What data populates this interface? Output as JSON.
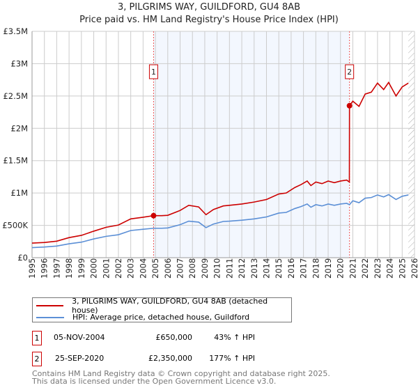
{
  "chart_data": {
    "type": "line",
    "title": "3, PILGRIMS WAY, GUILDFORD, GU4 8AB",
    "subtitle": "Price paid vs. HM Land Registry's House Price Index (HPI)",
    "xlim": [
      1995,
      2026
    ],
    "ylim": [
      0,
      3500000
    ],
    "yticks": [
      {
        "v": 0,
        "label": "£0"
      },
      {
        "v": 500000,
        "label": "£500K"
      },
      {
        "v": 1000000,
        "label": "£1M"
      },
      {
        "v": 1500000,
        "label": "£1.5M"
      },
      {
        "v": 2000000,
        "label": "£2M"
      },
      {
        "v": 2500000,
        "label": "£2.5M"
      },
      {
        "v": 3000000,
        "label": "£3M"
      },
      {
        "v": 3500000,
        "label": "£3.5M"
      }
    ],
    "xticks": [
      "1995",
      "1996",
      "1997",
      "1998",
      "1999",
      "2000",
      "2001",
      "2002",
      "2003",
      "2004",
      "2005",
      "2006",
      "2007",
      "2008",
      "2009",
      "2010",
      "2011",
      "2012",
      "2013",
      "2014",
      "2015",
      "2016",
      "2017",
      "2018",
      "2019",
      "2020",
      "2021",
      "2022",
      "2023",
      "2024",
      "2025",
      "2026"
    ],
    "shaded_range": [
      2004.85,
      2020.73
    ],
    "hatched_from": 2025.5,
    "series": [
      {
        "name": "3, PILGRIMS WAY, GUILDFORD, GU4 8AB (detached house)",
        "color": "#cc0000",
        "x": [
          1995,
          1996,
          1997,
          1998,
          1999,
          2000,
          2001,
          2002,
          2003,
          2004,
          2004.85,
          2005.5,
          2006,
          2007,
          2007.7,
          2008.5,
          2009.1,
          2009.7,
          2010.5,
          2011,
          2012,
          2013,
          2014,
          2015,
          2015.6,
          2016.3,
          2016.8,
          2017.3,
          2017.6,
          2018,
          2018.5,
          2019,
          2019.5,
          2020,
          2020.5,
          2020.72,
          2020.73,
          2021,
          2021.5,
          2022,
          2022.5,
          2023,
          2023.5,
          2023.9,
          2024.5,
          2025,
          2025.5
        ],
        "y": [
          225000,
          235000,
          255000,
          310000,
          345000,
          410000,
          470000,
          505000,
          600000,
          625000,
          650000,
          650000,
          655000,
          730000,
          810000,
          785000,
          665000,
          745000,
          800000,
          810000,
          830000,
          860000,
          900000,
          985000,
          1000000,
          1085000,
          1130000,
          1185000,
          1115000,
          1170000,
          1145000,
          1185000,
          1160000,
          1185000,
          1200000,
          1170000,
          2350000,
          2420000,
          2340000,
          2530000,
          2560000,
          2700000,
          2600000,
          2710000,
          2500000,
          2640000,
          2700000
        ]
      },
      {
        "name": "HPI: Average price, detached house, Guildford",
        "color": "#5b8fd6",
        "x": [
          1995,
          1996,
          1997,
          1998,
          1999,
          2000,
          2001,
          2002,
          2003,
          2004,
          2004.85,
          2005.5,
          2006,
          2007,
          2007.7,
          2008.5,
          2009.1,
          2009.7,
          2010.5,
          2011,
          2012,
          2013,
          2014,
          2015,
          2015.6,
          2016.3,
          2016.8,
          2017.3,
          2017.6,
          2018,
          2018.5,
          2019,
          2019.5,
          2020,
          2020.5,
          2020.73,
          2021,
          2021.5,
          2022,
          2022.5,
          2023,
          2023.5,
          2023.9,
          2024.5,
          2025,
          2025.5
        ],
        "y": [
          155000,
          165000,
          180000,
          215000,
          240000,
          290000,
          330000,
          355000,
          420000,
          440000,
          455000,
          455000,
          460000,
          510000,
          565000,
          550000,
          465000,
          520000,
          560000,
          565000,
          580000,
          600000,
          630000,
          690000,
          700000,
          760000,
          790000,
          830000,
          780000,
          820000,
          800000,
          830000,
          810000,
          830000,
          840000,
          820000,
          880000,
          850000,
          920000,
          930000,
          970000,
          940000,
          975000,
          900000,
          950000,
          970000
        ]
      }
    ],
    "sales": [
      {
        "id": "1",
        "x": 2004.85,
        "y": 650000
      },
      {
        "id": "2",
        "x": 2020.73,
        "y": 2350000
      }
    ]
  },
  "legend": {
    "property": "3, PILGRIMS WAY, GUILDFORD, GU4 8AB (detached house)",
    "hpi": "HPI: Average price, detached house, Guildford"
  },
  "sales_table": [
    {
      "id": "1",
      "date": "05-NOV-2004",
      "price": "£650,000",
      "hpi": "43% ↑ HPI"
    },
    {
      "id": "2",
      "date": "25-SEP-2020",
      "price": "£2,350,000",
      "hpi": "177% ↑ HPI"
    }
  ],
  "footer": {
    "line1": "Contains HM Land Registry data © Crown copyright and database right 2025.",
    "line2": "This data is licensed under the Open Government Licence v3.0."
  }
}
